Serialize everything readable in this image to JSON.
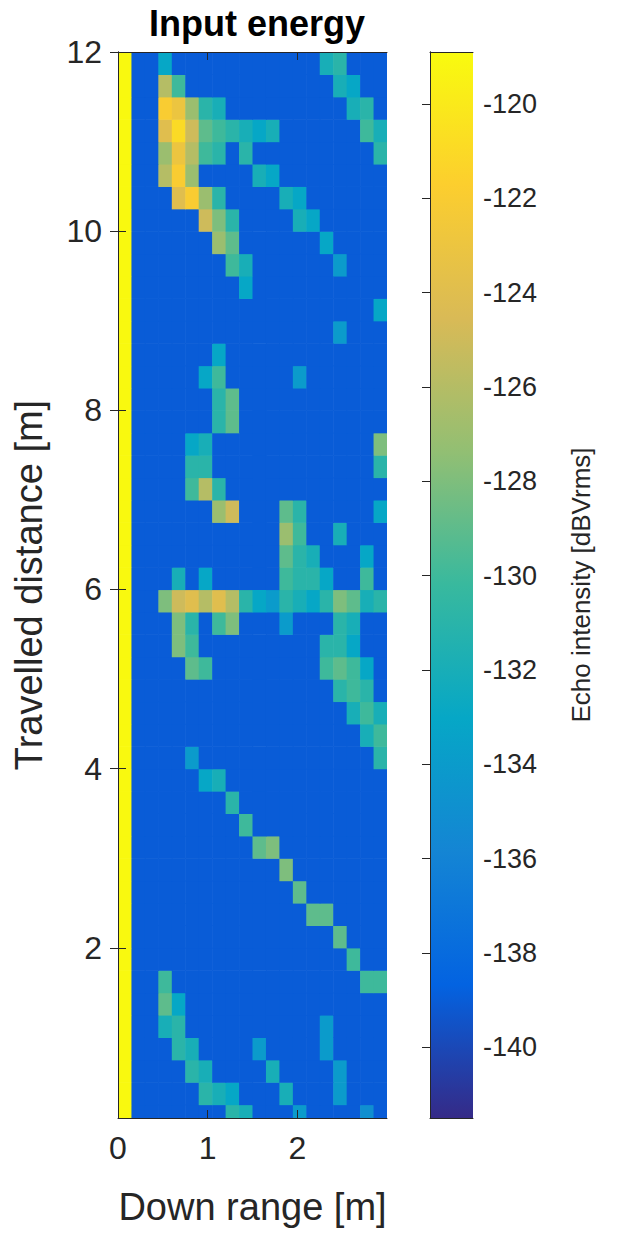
{
  "chart_data": {
    "type": "heatmap",
    "title": "Input energy",
    "x_label": "Down range [m]",
    "y_label": "Travelled distance [m]",
    "xlim": [
      0,
      3
    ],
    "xticks": [
      0,
      1,
      2
    ],
    "ylim": [
      0.1,
      12
    ],
    "yticks": [
      2,
      4,
      6,
      8,
      10,
      12
    ],
    "x": [
      0.075,
      0.225,
      0.375,
      0.525,
      0.675,
      0.825,
      0.975,
      1.125,
      1.275,
      1.425,
      1.575,
      1.725,
      1.875,
      2.025,
      2.175,
      2.325,
      2.475,
      2.625,
      2.775,
      2.925
    ],
    "y": [
      0.125,
      0.375,
      0.625,
      0.875,
      1.125,
      1.375,
      1.625,
      1.875,
      2.125,
      2.375,
      2.625,
      2.875,
      3.125,
      3.375,
      3.625,
      3.875,
      4.125,
      4.375,
      4.625,
      4.875,
      5.125,
      5.375,
      5.625,
      5.875,
      6.125,
      6.375,
      6.625,
      6.875,
      7.125,
      7.375,
      7.625,
      7.875,
      8.125,
      8.375,
      8.625,
      8.875,
      9.125,
      9.375,
      9.625,
      9.875,
      10.125,
      10.375,
      10.625,
      10.875,
      11.125,
      11.375,
      11.625,
      11.875
    ],
    "values": [
      [
        -119,
        -139,
        -139,
        -139,
        -139,
        -139,
        -139,
        -139,
        -131,
        -132,
        -139,
        -139,
        -139,
        -134,
        -139,
        -139,
        -139,
        -139,
        -135,
        -139
      ],
      [
        -119,
        -139,
        -139,
        -139,
        -139,
        -139,
        -131,
        -132,
        -133,
        -139,
        -139,
        -139,
        -132,
        -139,
        -139,
        -139,
        -134,
        -139,
        -139,
        -139
      ],
      [
        -119,
        -139,
        -139,
        -139,
        -139,
        -131,
        -132,
        -139,
        -139,
        -139,
        -139,
        -132,
        -139,
        -139,
        -139,
        -139,
        -134,
        -139,
        -139,
        -139
      ],
      [
        -119,
        -139,
        -139,
        -139,
        -131,
        -132,
        -139,
        -139,
        -139,
        -139,
        -134,
        -139,
        -139,
        -139,
        -139,
        -134,
        -139,
        -139,
        -139,
        -139
      ],
      [
        -119,
        -139,
        -139,
        -132,
        -131,
        -139,
        -139,
        -139,
        -139,
        -139,
        -139,
        -139,
        -139,
        -139,
        -139,
        -134,
        -139,
        -139,
        -139,
        -139
      ],
      [
        -119,
        -139,
        -139,
        -129,
        -133,
        -139,
        -139,
        -139,
        -139,
        -139,
        -139,
        -139,
        -139,
        -139,
        -139,
        -139,
        -139,
        -139,
        -139,
        -139
      ],
      [
        -119,
        -139,
        -139,
        -130,
        -139,
        -139,
        -139,
        -139,
        -139,
        -139,
        -139,
        -139,
        -139,
        -139,
        -139,
        -139,
        -139,
        -139,
        -130,
        -130
      ],
      [
        -119,
        -139,
        -139,
        -139,
        -139,
        -139,
        -139,
        -139,
        -139,
        -139,
        -139,
        -139,
        -139,
        -139,
        -139,
        -139,
        -139,
        -130,
        -139,
        -139
      ],
      [
        -119,
        -139,
        -139,
        -139,
        -139,
        -139,
        -139,
        -139,
        -139,
        -139,
        -139,
        -139,
        -139,
        -139,
        -139,
        -139,
        -129,
        -139,
        -139,
        -139
      ],
      [
        -119,
        -139,
        -139,
        -139,
        -139,
        -139,
        -139,
        -139,
        -139,
        -139,
        -139,
        -139,
        -139,
        -139,
        -129,
        -129,
        -139,
        -139,
        -139,
        -139
      ],
      [
        -119,
        -139,
        -139,
        -139,
        -139,
        -139,
        -139,
        -139,
        -139,
        -139,
        -139,
        -139,
        -139,
        -129,
        -139,
        -139,
        -139,
        -139,
        -139,
        -139
      ],
      [
        -119,
        -139,
        -139,
        -139,
        -139,
        -139,
        -139,
        -139,
        -139,
        -139,
        -139,
        -139,
        -128,
        -139,
        -139,
        -139,
        -139,
        -139,
        -139,
        -139
      ],
      [
        -119,
        -139,
        -139,
        -139,
        -139,
        -139,
        -139,
        -139,
        -139,
        -139,
        -129,
        -128,
        -139,
        -139,
        -139,
        -139,
        -139,
        -139,
        -139,
        -139
      ],
      [
        -119,
        -139,
        -139,
        -139,
        -139,
        -139,
        -139,
        -139,
        -139,
        -130,
        -139,
        -139,
        -139,
        -139,
        -139,
        -139,
        -139,
        -139,
        -139,
        -139
      ],
      [
        -119,
        -139,
        -139,
        -139,
        -139,
        -139,
        -139,
        -139,
        -131,
        -139,
        -139,
        -139,
        -139,
        -139,
        -139,
        -139,
        -139,
        -139,
        -139,
        -139
      ],
      [
        -119,
        -139,
        -139,
        -139,
        -139,
        -139,
        -133,
        -132,
        -139,
        -139,
        -139,
        -139,
        -139,
        -139,
        -139,
        -139,
        -139,
        -139,
        -139,
        -139
      ],
      [
        -119,
        -139,
        -139,
        -139,
        -139,
        -134,
        -139,
        -139,
        -139,
        -139,
        -139,
        -139,
        -139,
        -139,
        -139,
        -139,
        -139,
        -139,
        -139,
        -131
      ],
      [
        -119,
        -139,
        -139,
        -139,
        -139,
        -139,
        -139,
        -139,
        -139,
        -139,
        -139,
        -139,
        -139,
        -139,
        -139,
        -139,
        -139,
        -139,
        -132,
        -130
      ],
      [
        -119,
        -139,
        -139,
        -139,
        -139,
        -139,
        -139,
        -139,
        -139,
        -139,
        -139,
        -139,
        -139,
        -139,
        -139,
        -139,
        -139,
        -132,
        -130,
        -132
      ],
      [
        -119,
        -139,
        -139,
        -139,
        -139,
        -139,
        -139,
        -139,
        -139,
        -139,
        -139,
        -139,
        -139,
        -139,
        -139,
        -139,
        -131,
        -130,
        -131,
        -139
      ],
      [
        -119,
        -139,
        -139,
        -139,
        -139,
        -129,
        -130,
        -139,
        -139,
        -139,
        -139,
        -139,
        -139,
        -139,
        -139,
        -130,
        -129,
        -130,
        -133,
        -139
      ],
      [
        -119,
        -139,
        -139,
        -139,
        -128,
        -130,
        -139,
        -139,
        -139,
        -139,
        -139,
        -139,
        -139,
        -139,
        -139,
        -131,
        -131,
        -133,
        -139,
        -139
      ],
      [
        -119,
        -139,
        -139,
        -139,
        -128,
        -131,
        -139,
        -130,
        -128,
        -139,
        -139,
        -139,
        -134,
        -139,
        -139,
        -139,
        -131,
        -132,
        -139,
        -139
      ],
      [
        -119,
        -139,
        -139,
        -128,
        -125,
        -124,
        -126,
        -124,
        -126,
        -131,
        -133,
        -134,
        -131,
        -132,
        -133,
        -131,
        -128,
        -129,
        -132,
        -131
      ],
      [
        -119,
        -139,
        -139,
        -139,
        -132,
        -139,
        -133,
        -139,
        -139,
        -139,
        -139,
        -139,
        -130,
        -131,
        -131,
        -133,
        -139,
        -139,
        -130,
        -139
      ],
      [
        -119,
        -139,
        -139,
        -139,
        -139,
        -139,
        -139,
        -139,
        -139,
        -139,
        -139,
        -139,
        -129,
        -131,
        -132,
        -139,
        -139,
        -139,
        -133,
        -139
      ],
      [
        -119,
        -139,
        -139,
        -139,
        -139,
        -139,
        -139,
        -139,
        -139,
        -139,
        -139,
        -139,
        -127,
        -130,
        -139,
        -139,
        -132,
        -139,
        -139,
        -139
      ],
      [
        -119,
        -139,
        -139,
        -139,
        -139,
        -139,
        -139,
        -127,
        -125,
        -139,
        -139,
        -139,
        -129,
        -131,
        -139,
        -139,
        -139,
        -139,
        -139,
        -133
      ],
      [
        -119,
        -139,
        -139,
        -139,
        -139,
        -130,
        -126,
        -131,
        -139,
        -139,
        -139,
        -139,
        -139,
        -139,
        -139,
        -139,
        -139,
        -139,
        -139,
        -139
      ],
      [
        -119,
        -139,
        -139,
        -139,
        -139,
        -131,
        -131,
        -139,
        -139,
        -139,
        -139,
        -139,
        -139,
        -139,
        -139,
        -139,
        -139,
        -139,
        -139,
        -131
      ],
      [
        -119,
        -139,
        -139,
        -139,
        -139,
        -133,
        -132,
        -139,
        -139,
        -139,
        -139,
        -139,
        -139,
        -139,
        -139,
        -139,
        -139,
        -139,
        -139,
        -128
      ],
      [
        -119,
        -139,
        -139,
        -139,
        -139,
        -139,
        -139,
        -131,
        -129,
        -139,
        -139,
        -139,
        -139,
        -139,
        -139,
        -139,
        -139,
        -139,
        -139,
        -139
      ],
      [
        -119,
        -139,
        -139,
        -139,
        -139,
        -139,
        -139,
        -131,
        -129,
        -139,
        -139,
        -139,
        -139,
        -139,
        -139,
        -139,
        -139,
        -139,
        -139,
        -139
      ],
      [
        -119,
        -139,
        -139,
        -139,
        -139,
        -139,
        -133,
        -130,
        -139,
        -139,
        -139,
        -139,
        -139,
        -134,
        -139,
        -139,
        -139,
        -139,
        -139,
        -139
      ],
      [
        -119,
        -139,
        -139,
        -139,
        -139,
        -139,
        -139,
        -133,
        -139,
        -139,
        -139,
        -139,
        -139,
        -139,
        -139,
        -139,
        -139,
        -139,
        -139,
        -139
      ],
      [
        -119,
        -139,
        -139,
        -139,
        -139,
        -139,
        -139,
        -139,
        -139,
        -139,
        -139,
        -139,
        -139,
        -139,
        -139,
        -139,
        -134,
        -139,
        -139,
        -139
      ],
      [
        -119,
        -139,
        -139,
        -139,
        -139,
        -139,
        -139,
        -139,
        -139,
        -139,
        -139,
        -139,
        -139,
        -139,
        -139,
        -139,
        -139,
        -139,
        -139,
        -133
      ],
      [
        -119,
        -139,
        -139,
        -139,
        -139,
        -139,
        -139,
        -139,
        -139,
        -133,
        -139,
        -139,
        -139,
        -139,
        -139,
        -139,
        -139,
        -139,
        -139,
        -139
      ],
      [
        -119,
        -139,
        -139,
        -139,
        -139,
        -139,
        -139,
        -139,
        -130,
        -132,
        -139,
        -139,
        -139,
        -139,
        -139,
        -139,
        -134,
        -139,
        -139,
        -139
      ],
      [
        -119,
        -139,
        -139,
        -139,
        -139,
        -139,
        -139,
        -127,
        -129,
        -139,
        -139,
        -139,
        -139,
        -139,
        -139,
        -133,
        -139,
        -139,
        -139,
        -139
      ],
      [
        -119,
        -139,
        -139,
        -139,
        -139,
        -139,
        -125,
        -128,
        -131,
        -139,
        -139,
        -139,
        -139,
        -132,
        -133,
        -139,
        -139,
        -139,
        -139,
        -139
      ],
      [
        -119,
        -139,
        -139,
        -139,
        -124,
        -122,
        -127,
        -131,
        -139,
        -139,
        -139,
        -139,
        -132,
        -133,
        -139,
        -139,
        -139,
        -139,
        -139,
        -139
      ],
      [
        -119,
        -139,
        -139,
        -126,
        -122,
        -127,
        -139,
        -139,
        -139,
        -139,
        -132,
        -133,
        -139,
        -139,
        -139,
        -139,
        -139,
        -139,
        -139,
        -139
      ],
      [
        -119,
        -139,
        -139,
        -127,
        -123,
        -126,
        -130,
        -131,
        -139,
        -131,
        -139,
        -139,
        -139,
        -139,
        -139,
        -139,
        -139,
        -139,
        -139,
        -131
      ],
      [
        -119,
        -139,
        -139,
        -124,
        -121,
        -125,
        -129,
        -130,
        -131,
        -132,
        -133,
        -132,
        -139,
        -139,
        -139,
        -139,
        -139,
        -139,
        -130,
        -132
      ],
      [
        -119,
        -139,
        -139,
        -122,
        -123,
        -127,
        -131,
        -132,
        -139,
        -139,
        -139,
        -139,
        -139,
        -139,
        -139,
        -139,
        -139,
        -132,
        -131,
        -139
      ],
      [
        -119,
        -139,
        -139,
        -126,
        -130,
        -139,
        -139,
        -139,
        -139,
        -139,
        -139,
        -139,
        -139,
        -139,
        -139,
        -139,
        -132,
        -133,
        -139,
        -139
      ],
      [
        -119,
        -139,
        -139,
        -133,
        -139,
        -139,
        -139,
        -139,
        -139,
        -139,
        -139,
        -139,
        -139,
        -139,
        -139,
        -132,
        -131,
        -139,
        -139,
        -139
      ]
    ],
    "colorbar_label": "Echo intensity [dBVrms]",
    "colorbar_range": [
      -141.5,
      -118.9
    ],
    "colorbar_ticks": [
      -140,
      -138,
      -136,
      -134,
      -132,
      -130,
      -128,
      -126,
      -124,
      -122,
      -120
    ]
  }
}
